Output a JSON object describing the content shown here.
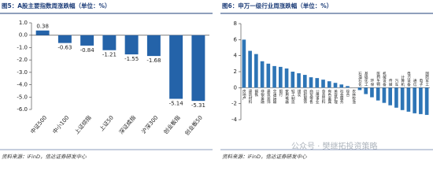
{
  "chart_data": [
    {
      "type": "bar",
      "title": "图5：A股主要指数周涨跌幅（单位：%）",
      "source": "资料来源：iFinD，信达证券研发中心",
      "categories": [
        "中证500",
        "中小100",
        "上证综指",
        "上证50",
        "深证成指",
        "沪深300",
        "创业板指",
        "创业板50"
      ],
      "values": [
        0.38,
        -0.63,
        -0.84,
        -1.21,
        -1.55,
        -1.68,
        -5.14,
        -5.31
      ],
      "color": "#2463a9",
      "data_labels": true,
      "ylim": [
        -6,
        1
      ],
      "yticks": [
        {
          "value": 1,
          "label": "1.0"
        },
        {
          "value": 0,
          "label": "0.0"
        },
        {
          "value": -1,
          "label": "-1.0"
        },
        {
          "value": -2,
          "label": "-2.0"
        },
        {
          "value": -3,
          "label": "-3.0"
        },
        {
          "value": -4,
          "label": "-4.0"
        },
        {
          "value": -5,
          "label": "-5.0"
        },
        {
          "value": -6,
          "label": "-6.0"
        }
      ]
    },
    {
      "type": "bar",
      "title": "图6：申万一级行业周涨跌幅（单位：%）",
      "source": "资料来源：iFinD，信达证券研发中心",
      "categories": [
        "房地产",
        "建筑材料",
        "钢铁",
        "非银金融",
        "建筑装饰",
        "交通运输",
        "银行",
        "家用电器",
        "轻工制造",
        "煤炭",
        "纺织服饰",
        "商贸零售",
        "公用事业",
        "食品饮料",
        "有色金属",
        "美容护理",
        "社会服务",
        "综合",
        "农林牧渔",
        "石油石化",
        "基础化工",
        "环保",
        "医药生物",
        "机械设备",
        "传媒",
        "汽车",
        "计算机",
        "电力设备",
        "通信",
        "电子",
        "国防军工"
      ],
      "values": [
        6.0,
        4.6,
        4.2,
        3.3,
        3.0,
        2.7,
        2.6,
        2.4,
        2.0,
        1.8,
        1.6,
        1.3,
        1.2,
        1.0,
        0.8,
        0.6,
        0.4,
        0.2,
        0.0,
        -0.3,
        -0.8,
        -1.2,
        -1.6,
        -1.9,
        -2.2,
        -2.5,
        -2.8,
        -3.0,
        -3.2,
        -3.3,
        -3.4
      ],
      "color": "#2e75b6",
      "data_labels": false,
      "ylim": [
        -4,
        8
      ],
      "yticks": [
        8,
        6,
        4,
        2,
        0,
        -2,
        -4
      ]
    }
  ],
  "watermark": "公众号 · 樊继拓投资策略"
}
